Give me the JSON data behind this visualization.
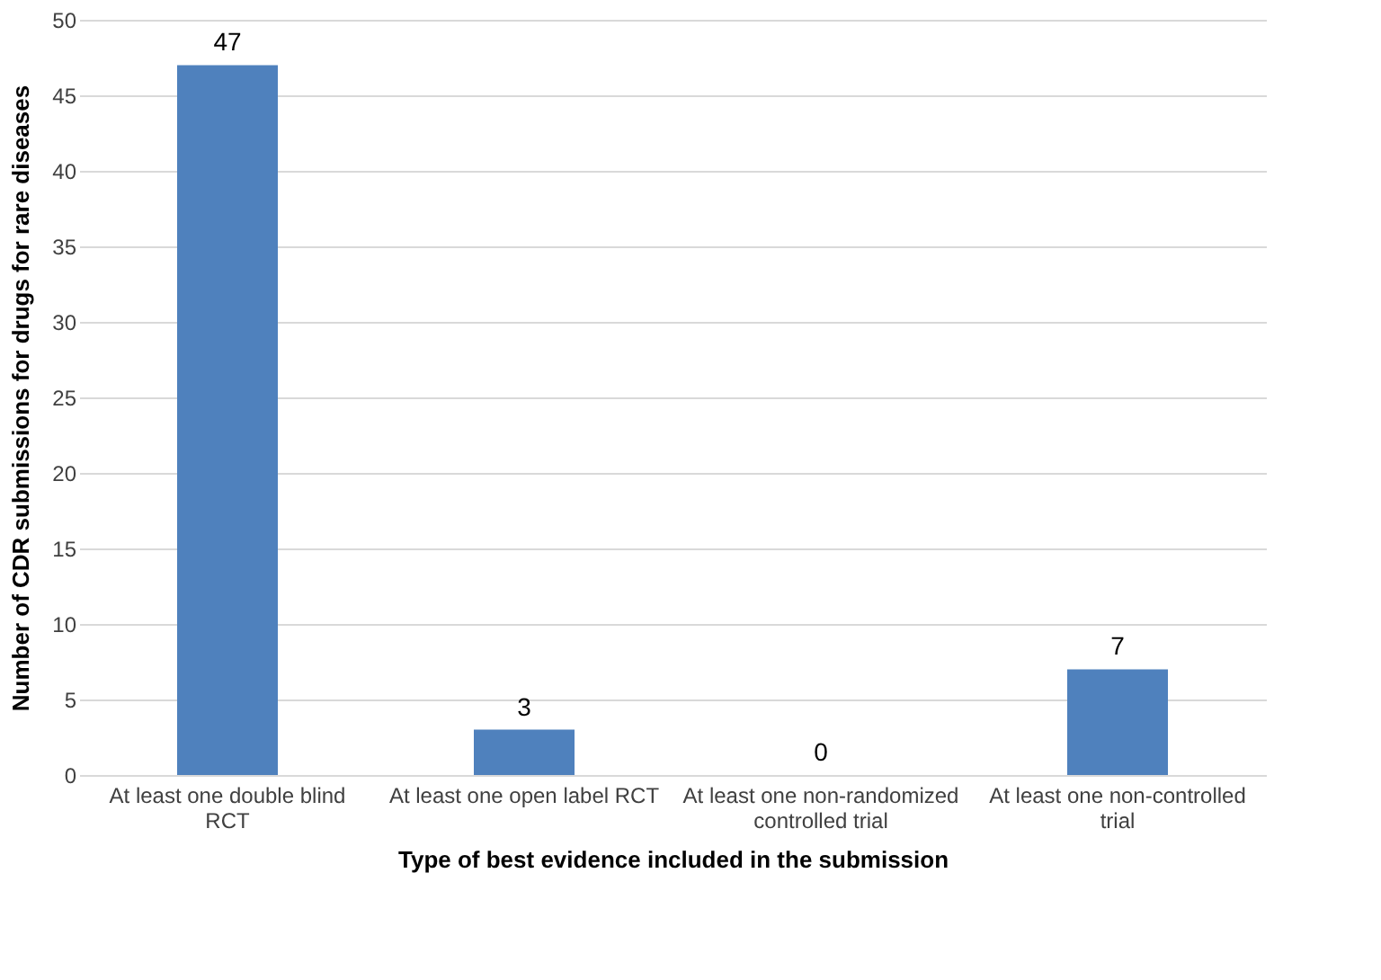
{
  "chart_data": {
    "type": "bar",
    "xlabel": "Type of best evidence included in the submission",
    "ylabel": "Number of CDR submissions for drugs for rare diseases",
    "categories": [
      "At least one double blind RCT",
      "At least one open label RCT",
      "At least one non-randomized controlled trial",
      "At least one non-controlled trial"
    ],
    "values": [
      47,
      3,
      0,
      7
    ],
    "color": "#4f81bd",
    "ylim": [
      0,
      50
    ],
    "yticks": [
      0,
      5,
      10,
      15,
      20,
      25,
      30,
      35,
      40,
      45,
      50
    ],
    "grid": "y",
    "data_labels": true
  }
}
